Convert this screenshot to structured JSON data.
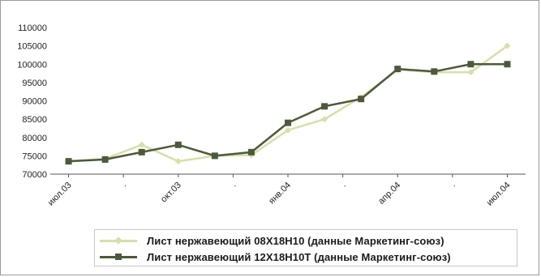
{
  "chart_data": {
    "type": "line",
    "title": "",
    "xlabel": "",
    "ylabel": "",
    "x_tick_labels": [
      "июл.03",
      "",
      "окт.03",
      "",
      "янв.04",
      "",
      "апр.04",
      "",
      "июл.04"
    ],
    "ylim": [
      70000,
      110000
    ],
    "y_ticks": [
      "110000",
      "105000",
      "100000",
      "95000",
      "90000",
      "85000",
      "80000",
      "75000",
      "70000"
    ],
    "grid": false,
    "legend_position": "bottom",
    "series": [
      {
        "name": "Лист нержавеющий 08Х18Н10 (данные Маркетинг-союз)",
        "color": "#d6e0a8",
        "marker": "diamond",
        "values": [
          73500,
          74200,
          78000,
          73500,
          75000,
          75200,
          82000,
          85000,
          91000,
          98500,
          97800,
          97800,
          105000
        ]
      },
      {
        "name": "Лист нержавеющий 12Х18Н10Т (данные Маркетинг-союз)",
        "color": "#4d5a3a",
        "marker": "square",
        "values": [
          73500,
          74000,
          76000,
          78000,
          75000,
          76000,
          84000,
          88500,
          90500,
          98700,
          98000,
          100000,
          100000
        ]
      }
    ]
  }
}
